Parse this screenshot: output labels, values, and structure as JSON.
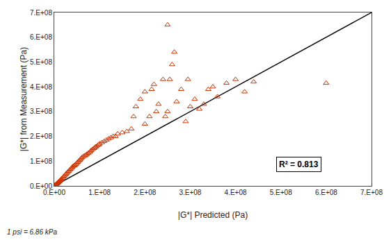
{
  "chart_data": {
    "type": "scatter",
    "xlabel": "|G*| Predicted (Pa)",
    "ylabel": "|G*| from Measurement (Pa)",
    "annotation": "R² = 0.813",
    "footnote": "1 psi = 6.86 kPa",
    "xlim": [
      0,
      700000000.0
    ],
    "ylim": [
      0,
      700000000.0
    ],
    "xticks": [
      {
        "value": 0,
        "label": "0.E+00"
      },
      {
        "value": 100000000.0,
        "label": "1.E+08"
      },
      {
        "value": 200000000.0,
        "label": "2.E+08"
      },
      {
        "value": 300000000.0,
        "label": "3.E+08"
      },
      {
        "value": 400000000.0,
        "label": "4.E+08"
      },
      {
        "value": 500000000.0,
        "label": "5.E+08"
      },
      {
        "value": 600000000.0,
        "label": "6.E+08"
      },
      {
        "value": 700000000.0,
        "label": "7.E+08"
      }
    ],
    "yticks": [
      {
        "value": 0,
        "label": "0.E+00"
      },
      {
        "value": 100000000.0,
        "label": "1.E+08"
      },
      {
        "value": 200000000.0,
        "label": "2.E+08"
      },
      {
        "value": 300000000.0,
        "label": "3.E+08"
      },
      {
        "value": 400000000.0,
        "label": "4.E+08"
      },
      {
        "value": 500000000.0,
        "label": "5.E+08"
      },
      {
        "value": 600000000.0,
        "label": "6.E+08"
      },
      {
        "value": 700000000.0,
        "label": "7.E+08"
      }
    ],
    "grid": false,
    "series": [
      {
        "type": "line",
        "color": "#000000",
        "line_style": "solid",
        "x": [
          0,
          700000000.0
        ],
        "y": [
          0,
          700000000.0
        ]
      },
      {
        "type": "scatter",
        "color": "#cc3300",
        "marker": "triangle-up-open",
        "x": [
          2000000.0,
          3000000.0,
          4000000.0,
          5000000.0,
          6000000.0,
          7000000.0,
          8000000.0,
          9000000.0,
          10000000.0,
          11000000.0,
          12000000.0,
          13000000.0,
          14000000.0,
          15000000.0,
          16000000.0,
          18000000.0,
          20000000.0,
          22000000.0,
          24000000.0,
          26000000.0,
          28000000.0,
          30000000.0,
          32000000.0,
          34000000.0,
          36000000.0,
          38000000.0,
          40000000.0,
          42000000.0,
          44000000.0,
          46000000.0,
          48000000.0,
          50000000.0,
          52000000.0,
          54000000.0,
          56000000.0,
          58000000.0,
          60000000.0,
          62000000.0,
          65000000.0,
          68000000.0,
          70000000.0,
          72000000.0,
          75000000.0,
          78000000.0,
          80000000.0,
          82000000.0,
          85000000.0,
          88000000.0,
          90000000.0,
          92000000.0,
          95000000.0,
          98000000.0,
          100000000.0,
          105000000.0,
          110000000.0,
          115000000.0,
          120000000.0,
          125000000.0,
          130000000.0,
          135000000.0,
          140000000.0,
          150000000.0,
          160000000.0,
          170000000.0,
          175000000.0,
          180000000.0,
          190000000.0,
          200000000.0,
          200000000.0,
          210000000.0,
          215000000.0,
          220000000.0,
          225000000.0,
          230000000.0,
          240000000.0,
          245000000.0,
          250000000.0,
          255000000.0,
          260000000.0,
          265000000.0,
          270000000.0,
          280000000.0,
          290000000.0,
          295000000.0,
          300000000.0,
          310000000.0,
          320000000.0,
          330000000.0,
          340000000.0,
          350000000.0,
          360000000.0,
          380000000.0,
          400000000.0,
          420000000.0,
          440000000.0,
          600000000.0,
          250000000.0
        ],
        "y": [
          4000000.0,
          5000000.0,
          6000000.0,
          8000000.0,
          9000000.0,
          11000000.0,
          13000000.0,
          14000000.0,
          16000000.0,
          18000000.0,
          20000000.0,
          22000000.0,
          24000000.0,
          26000000.0,
          28000000.0,
          32000000.0,
          36000000.0,
          40000000.0,
          44000000.0,
          48000000.0,
          52000000.0,
          56000000.0,
          60000000.0,
          64000000.0,
          68000000.0,
          72000000.0,
          76000000.0,
          80000000.0,
          82000000.0,
          84000000.0,
          88000000.0,
          92000000.0,
          96000000.0,
          100000000.0,
          104000000.0,
          108000000.0,
          112000000.0,
          116000000.0,
          120000000.0,
          122000000.0,
          125000000.0,
          128000000.0,
          132000000.0,
          136000000.0,
          140000000.0,
          144000000.0,
          148000000.0,
          152000000.0,
          156000000.0,
          158000000.0,
          162000000.0,
          166000000.0,
          170000000.0,
          175000000.0,
          180000000.0,
          185000000.0,
          190000000.0,
          195000000.0,
          200000000.0,
          200000000.0,
          210000000.0,
          215000000.0,
          220000000.0,
          230000000.0,
          280000000.0,
          320000000.0,
          350000000.0,
          380000000.0,
          250000000.0,
          280000000.0,
          390000000.0,
          410000000.0,
          300000000.0,
          330000000.0,
          430000000.0,
          280000000.0,
          300000000.0,
          430000000.0,
          490000000.0,
          540000000.0,
          340000000.0,
          390000000.0,
          260000000.0,
          430000000.0,
          320000000.0,
          350000000.0,
          310000000.0,
          330000000.0,
          390000000.0,
          400000000.0,
          360000000.0,
          415000000.0,
          430000000.0,
          380000000.0,
          420000000.0,
          415000000.0,
          650000000.0
        ]
      }
    ]
  }
}
